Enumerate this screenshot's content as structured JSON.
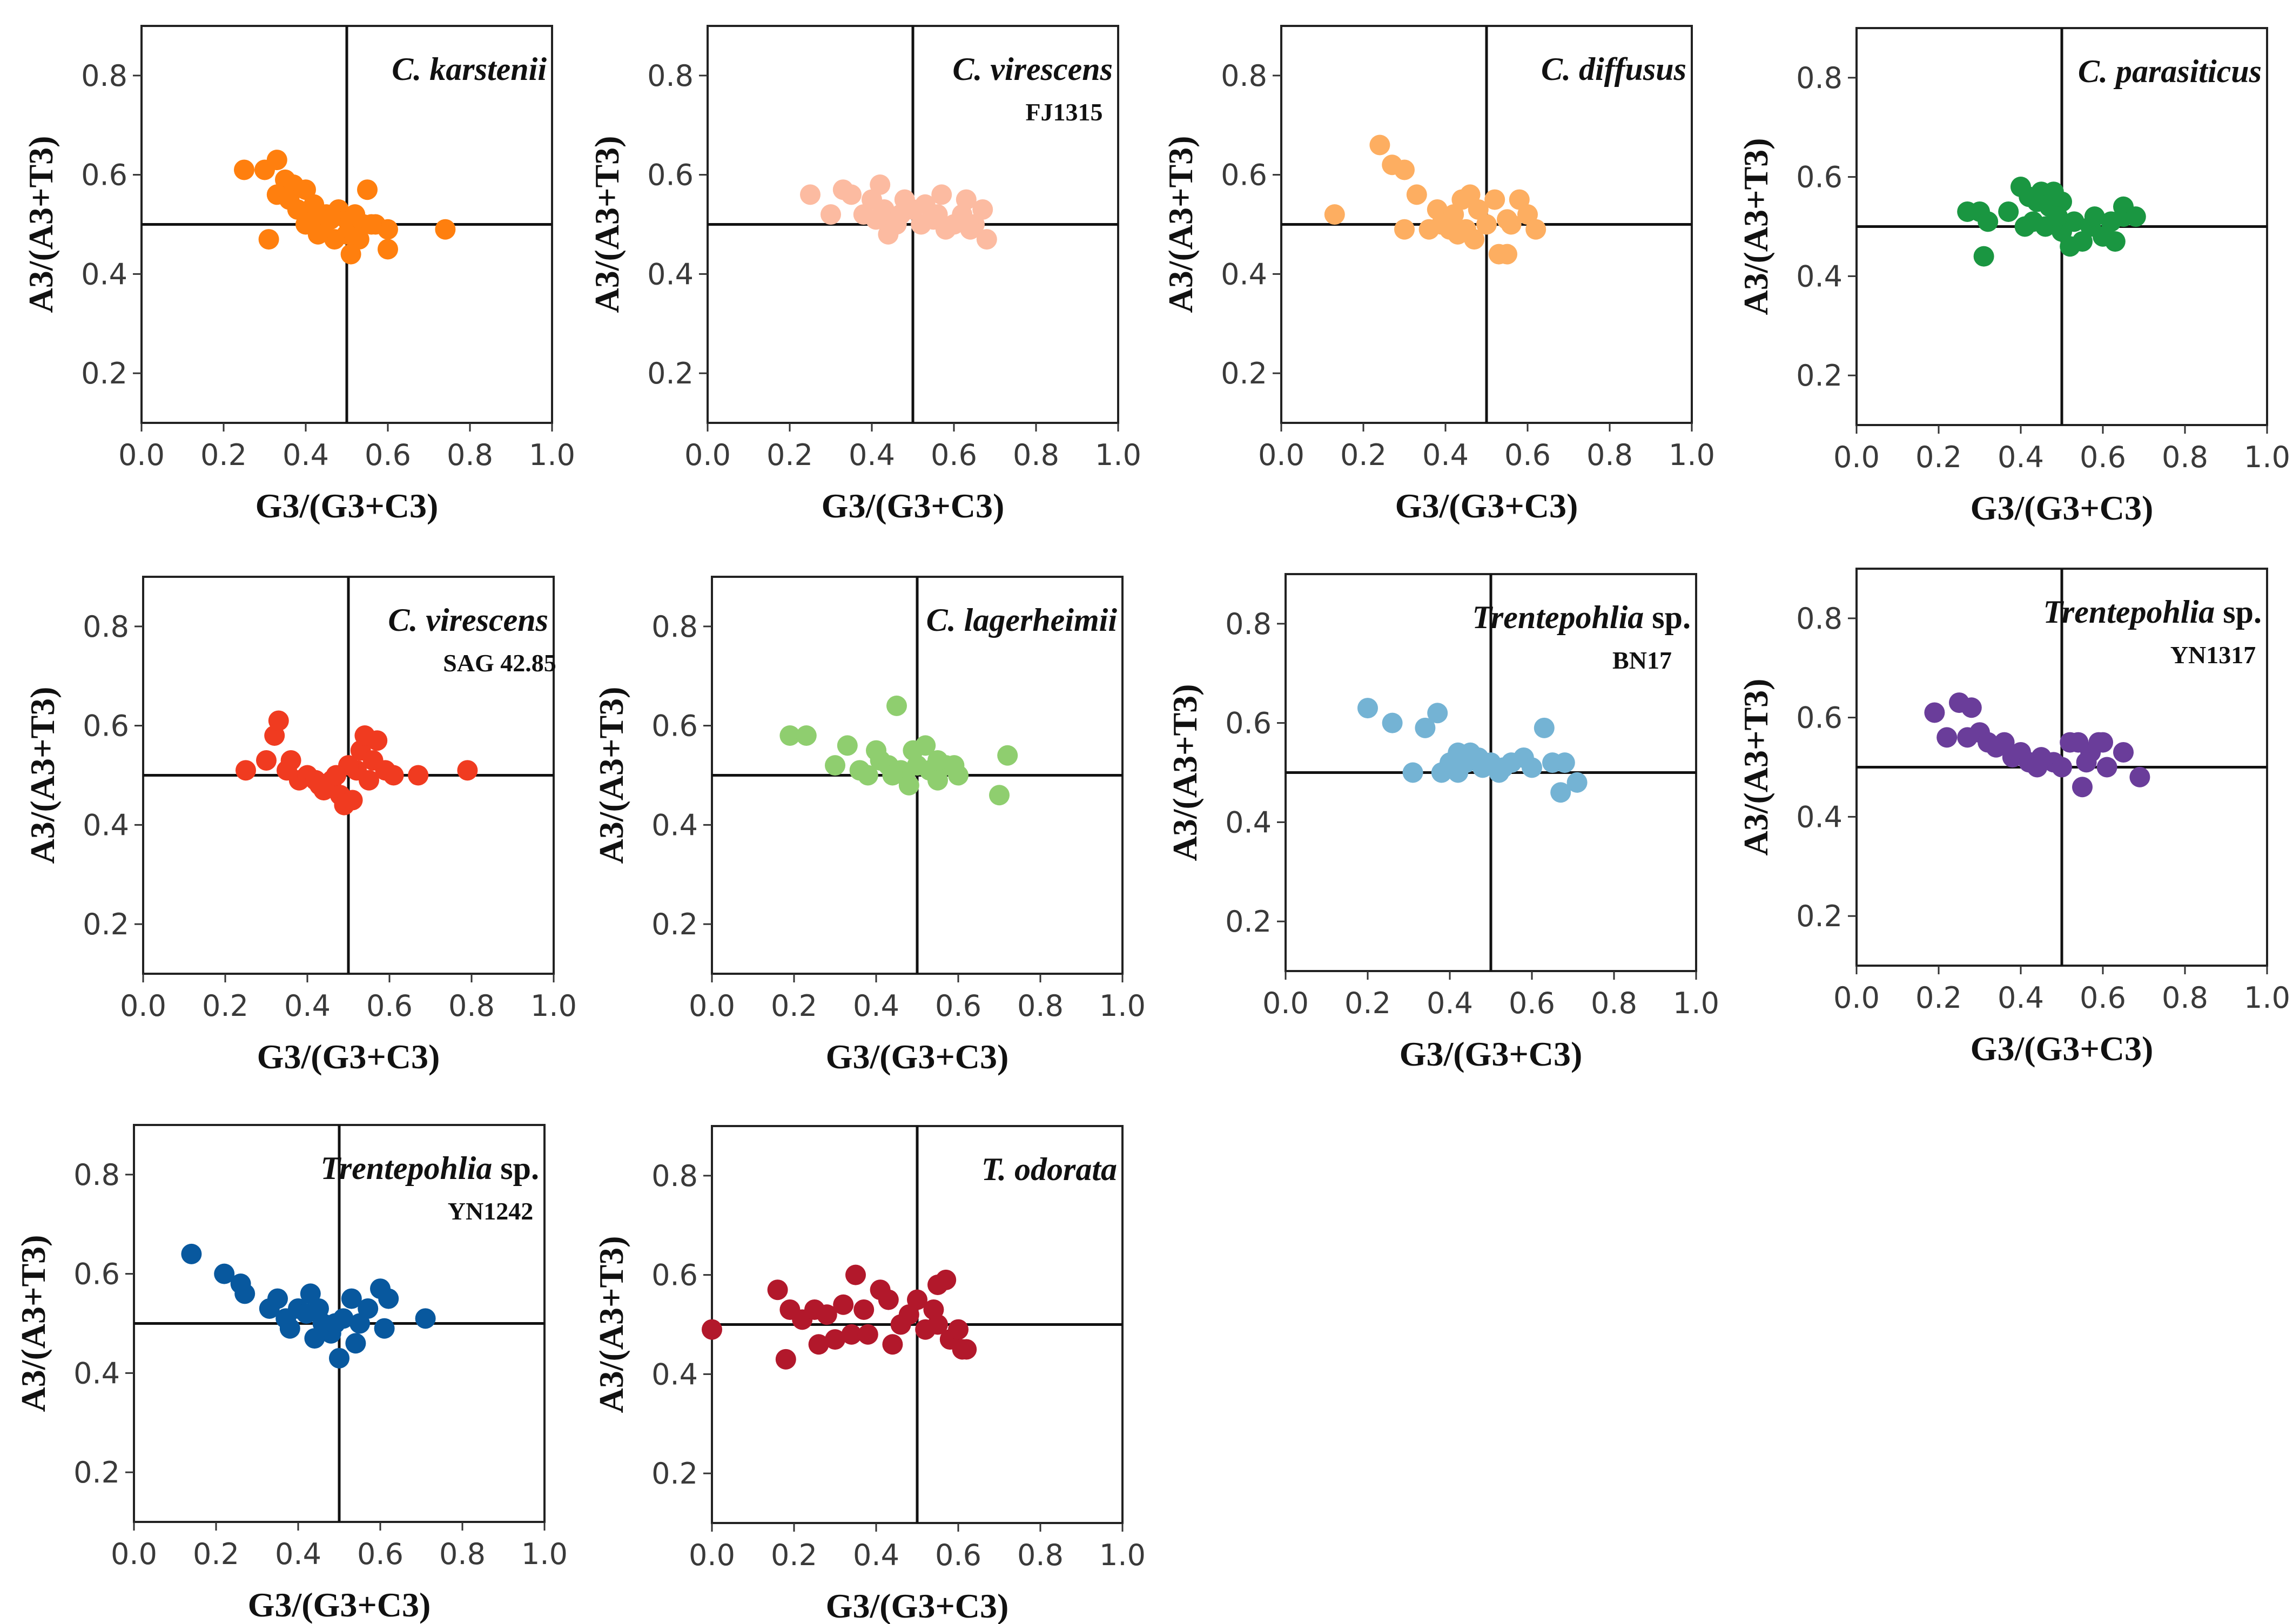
{
  "chart_data": [
    {
      "type": "scatter",
      "title_italic": "C. karstenii",
      "title_rest": "",
      "subtitle": "",
      "color": "#ff7f0e",
      "xlabel": "G3/(G3+C3)",
      "ylabel": "A3/(A3+T3)",
      "xlim": [
        0,
        1
      ],
      "ylim": [
        0.1,
        0.9
      ],
      "xticks": [
        "0.0",
        "0.2",
        "0.4",
        "0.6",
        "0.8",
        "1.0"
      ],
      "yticks": [
        "0.2",
        "0.4",
        "0.6",
        "0.8"
      ],
      "ref_x": 0.5,
      "ref_y": 0.5,
      "points": [
        [
          0.25,
          0.61
        ],
        [
          0.3,
          0.61
        ],
        [
          0.33,
          0.63
        ],
        [
          0.35,
          0.59
        ],
        [
          0.37,
          0.58
        ],
        [
          0.33,
          0.56
        ],
        [
          0.36,
          0.55
        ],
        [
          0.4,
          0.57
        ],
        [
          0.38,
          0.53
        ],
        [
          0.41,
          0.52
        ],
        [
          0.42,
          0.54
        ],
        [
          0.45,
          0.52
        ],
        [
          0.48,
          0.53
        ],
        [
          0.5,
          0.51
        ],
        [
          0.52,
          0.52
        ],
        [
          0.54,
          0.5
        ],
        [
          0.55,
          0.57
        ],
        [
          0.57,
          0.5
        ],
        [
          0.6,
          0.49
        ],
        [
          0.44,
          0.49
        ],
        [
          0.46,
          0.51
        ],
        [
          0.5,
          0.48
        ],
        [
          0.53,
          0.47
        ],
        [
          0.47,
          0.47
        ],
        [
          0.43,
          0.48
        ],
        [
          0.31,
          0.47
        ],
        [
          0.51,
          0.44
        ],
        [
          0.6,
          0.45
        ],
        [
          0.74,
          0.49
        ],
        [
          0.56,
          0.5
        ],
        [
          0.4,
          0.5
        ]
      ]
    },
    {
      "type": "scatter",
      "title_italic": "C. virescens",
      "title_rest": "",
      "subtitle": "FJ1315",
      "color": "#fcbba1",
      "xlabel": "G3/(G3+C3)",
      "ylabel": "A3/(A3+T3)",
      "xlim": [
        0,
        1
      ],
      "ylim": [
        0.1,
        0.9
      ],
      "xticks": [
        "0.0",
        "0.2",
        "0.4",
        "0.6",
        "0.8",
        "1.0"
      ],
      "yticks": [
        "0.2",
        "0.4",
        "0.6",
        "0.8"
      ],
      "ref_x": 0.5,
      "ref_y": 0.5,
      "points": [
        [
          0.25,
          0.56
        ],
        [
          0.3,
          0.52
        ],
        [
          0.33,
          0.57
        ],
        [
          0.35,
          0.56
        ],
        [
          0.4,
          0.55
        ],
        [
          0.42,
          0.58
        ],
        [
          0.43,
          0.53
        ],
        [
          0.45,
          0.5
        ],
        [
          0.47,
          0.52
        ],
        [
          0.48,
          0.55
        ],
        [
          0.5,
          0.53
        ],
        [
          0.52,
          0.5
        ],
        [
          0.55,
          0.51
        ],
        [
          0.57,
          0.56
        ],
        [
          0.6,
          0.5
        ],
        [
          0.62,
          0.52
        ],
        [
          0.63,
          0.55
        ],
        [
          0.65,
          0.5
        ],
        [
          0.67,
          0.53
        ],
        [
          0.68,
          0.47
        ],
        [
          0.44,
          0.48
        ],
        [
          0.46,
          0.5
        ],
        [
          0.53,
          0.54
        ],
        [
          0.58,
          0.49
        ],
        [
          0.41,
          0.51
        ],
        [
          0.38,
          0.52
        ],
        [
          0.56,
          0.52
        ],
        [
          0.64,
          0.49
        ]
      ]
    },
    {
      "type": "scatter",
      "title_italic": "C. diffusus",
      "title_rest": "",
      "subtitle": "",
      "color": "#fdae61",
      "xlabel": "G3/(G3+C3)",
      "ylabel": "A3/(A3+T3)",
      "xlim": [
        0,
        1
      ],
      "ylim": [
        0.1,
        0.9
      ],
      "xticks": [
        "0.0",
        "0.2",
        "0.4",
        "0.6",
        "0.8",
        "1.0"
      ],
      "yticks": [
        "0.2",
        "0.4",
        "0.6",
        "0.8"
      ],
      "ref_x": 0.5,
      "ref_y": 0.5,
      "points": [
        [
          0.13,
          0.52
        ],
        [
          0.24,
          0.66
        ],
        [
          0.27,
          0.62
        ],
        [
          0.3,
          0.61
        ],
        [
          0.33,
          0.56
        ],
        [
          0.3,
          0.49
        ],
        [
          0.36,
          0.49
        ],
        [
          0.38,
          0.53
        ],
        [
          0.4,
          0.51
        ],
        [
          0.42,
          0.52
        ],
        [
          0.44,
          0.55
        ],
        [
          0.46,
          0.56
        ],
        [
          0.48,
          0.53
        ],
        [
          0.45,
          0.49
        ],
        [
          0.43,
          0.48
        ],
        [
          0.5,
          0.5
        ],
        [
          0.52,
          0.55
        ],
        [
          0.55,
          0.51
        ],
        [
          0.58,
          0.55
        ],
        [
          0.6,
          0.52
        ],
        [
          0.62,
          0.49
        ],
        [
          0.53,
          0.44
        ],
        [
          0.55,
          0.44
        ],
        [
          0.47,
          0.47
        ],
        [
          0.41,
          0.49
        ],
        [
          0.39,
          0.5
        ],
        [
          0.56,
          0.5
        ]
      ]
    },
    {
      "type": "scatter",
      "title_italic": "C. parasiticus",
      "title_rest": "",
      "subtitle": "",
      "color": "#1a9641",
      "xlabel": "G3/(G3+C3)",
      "ylabel": "A3/(A3+T3)",
      "xlim": [
        0,
        1
      ],
      "ylim": [
        0.1,
        0.9
      ],
      "xticks": [
        "0.0",
        "0.2",
        "0.4",
        "0.6",
        "0.8",
        "1.0"
      ],
      "yticks": [
        "0.2",
        "0.4",
        "0.6",
        "0.8"
      ],
      "ref_x": 0.5,
      "ref_y": 0.5,
      "points": [
        [
          0.27,
          0.53
        ],
        [
          0.3,
          0.53
        ],
        [
          0.32,
          0.51
        ],
        [
          0.31,
          0.44
        ],
        [
          0.37,
          0.53
        ],
        [
          0.4,
          0.58
        ],
        [
          0.42,
          0.56
        ],
        [
          0.44,
          0.55
        ],
        [
          0.45,
          0.57
        ],
        [
          0.47,
          0.54
        ],
        [
          0.48,
          0.57
        ],
        [
          0.5,
          0.55
        ],
        [
          0.41,
          0.5
        ],
        [
          0.46,
          0.5
        ],
        [
          0.5,
          0.49
        ],
        [
          0.53,
          0.51
        ],
        [
          0.55,
          0.47
        ],
        [
          0.57,
          0.5
        ],
        [
          0.6,
          0.48
        ],
        [
          0.62,
          0.51
        ],
        [
          0.65,
          0.52
        ],
        [
          0.65,
          0.54
        ],
        [
          0.63,
          0.47
        ],
        [
          0.68,
          0.52
        ],
        [
          0.52,
          0.46
        ],
        [
          0.58,
          0.52
        ],
        [
          0.43,
          0.51
        ],
        [
          0.49,
          0.52
        ]
      ]
    },
    {
      "type": "scatter",
      "title_italic": "C. virescens",
      "title_rest": "",
      "subtitle": "SAG 42.85",
      "color": "#f03b20",
      "xlabel": "G3/(G3+C3)",
      "ylabel": "A3/(A3+T3)",
      "xlim": [
        0,
        1
      ],
      "ylim": [
        0.1,
        0.9
      ],
      "xticks": [
        "0.0",
        "0.2",
        "0.4",
        "0.6",
        "0.8",
        "1.0"
      ],
      "yticks": [
        "0.2",
        "0.4",
        "0.6",
        "0.8"
      ],
      "ref_x": 0.5,
      "ref_y": 0.5,
      "points": [
        [
          0.25,
          0.51
        ],
        [
          0.3,
          0.53
        ],
        [
          0.32,
          0.58
        ],
        [
          0.33,
          0.61
        ],
        [
          0.36,
          0.53
        ],
        [
          0.38,
          0.49
        ],
        [
          0.4,
          0.5
        ],
        [
          0.42,
          0.49
        ],
        [
          0.44,
          0.47
        ],
        [
          0.46,
          0.49
        ],
        [
          0.48,
          0.46
        ],
        [
          0.49,
          0.44
        ],
        [
          0.51,
          0.45
        ],
        [
          0.52,
          0.51
        ],
        [
          0.53,
          0.55
        ],
        [
          0.54,
          0.58
        ],
        [
          0.57,
          0.57
        ],
        [
          0.59,
          0.51
        ],
        [
          0.61,
          0.5
        ],
        [
          0.67,
          0.5
        ],
        [
          0.79,
          0.51
        ],
        [
          0.55,
          0.49
        ],
        [
          0.5,
          0.52
        ],
        [
          0.47,
          0.5
        ],
        [
          0.43,
          0.48
        ],
        [
          0.35,
          0.51
        ],
        [
          0.56,
          0.53
        ]
      ]
    },
    {
      "type": "scatter",
      "title_italic": "C. lagerheimii",
      "title_rest": "",
      "subtitle": "",
      "color": "#8fce6f",
      "xlabel": "G3/(G3+C3)",
      "ylabel": "A3/(A3+T3)",
      "xlim": [
        0,
        1
      ],
      "ylim": [
        0.1,
        0.9
      ],
      "xticks": [
        "0.0",
        "0.2",
        "0.4",
        "0.6",
        "0.8",
        "1.0"
      ],
      "yticks": [
        "0.2",
        "0.4",
        "0.6",
        "0.8"
      ],
      "ref_x": 0.5,
      "ref_y": 0.5,
      "points": [
        [
          0.19,
          0.58
        ],
        [
          0.23,
          0.58
        ],
        [
          0.3,
          0.52
        ],
        [
          0.33,
          0.56
        ],
        [
          0.38,
          0.5
        ],
        [
          0.4,
          0.55
        ],
        [
          0.41,
          0.53
        ],
        [
          0.43,
          0.52
        ],
        [
          0.45,
          0.64
        ],
        [
          0.46,
          0.51
        ],
        [
          0.47,
          0.5
        ],
        [
          0.49,
          0.55
        ],
        [
          0.5,
          0.52
        ],
        [
          0.52,
          0.56
        ],
        [
          0.53,
          0.51
        ],
        [
          0.55,
          0.49
        ],
        [
          0.57,
          0.52
        ],
        [
          0.59,
          0.52
        ],
        [
          0.6,
          0.5
        ],
        [
          0.7,
          0.46
        ],
        [
          0.72,
          0.54
        ],
        [
          0.44,
          0.5
        ],
        [
          0.48,
          0.48
        ],
        [
          0.55,
          0.53
        ],
        [
          0.36,
          0.51
        ]
      ]
    },
    {
      "type": "scatter",
      "title_italic": "Trentepohlia",
      "title_rest": " sp.",
      "subtitle": "BN17",
      "color": "#74b3d4",
      "xlabel": "G3/(G3+C3)",
      "ylabel": "A3/(A3+T3)",
      "xlim": [
        0,
        1
      ],
      "ylim": [
        0.1,
        0.9
      ],
      "xticks": [
        "0.0",
        "0.2",
        "0.4",
        "0.6",
        "0.8",
        "1.0"
      ],
      "yticks": [
        "0.2",
        "0.4",
        "0.6",
        "0.8"
      ],
      "ref_x": 0.5,
      "ref_y": 0.5,
      "points": [
        [
          0.2,
          0.63
        ],
        [
          0.26,
          0.6
        ],
        [
          0.31,
          0.5
        ],
        [
          0.34,
          0.59
        ],
        [
          0.37,
          0.62
        ],
        [
          0.38,
          0.5
        ],
        [
          0.4,
          0.52
        ],
        [
          0.42,
          0.54
        ],
        [
          0.44,
          0.52
        ],
        [
          0.45,
          0.54
        ],
        [
          0.47,
          0.53
        ],
        [
          0.5,
          0.52
        ],
        [
          0.52,
          0.5
        ],
        [
          0.55,
          0.52
        ],
        [
          0.58,
          0.53
        ],
        [
          0.63,
          0.59
        ],
        [
          0.65,
          0.52
        ],
        [
          0.67,
          0.46
        ],
        [
          0.68,
          0.52
        ],
        [
          0.71,
          0.48
        ],
        [
          0.48,
          0.51
        ],
        [
          0.42,
          0.5
        ],
        [
          0.53,
          0.51
        ],
        [
          0.6,
          0.51
        ]
      ]
    },
    {
      "type": "scatter",
      "title_italic": "Trentepohlia",
      "title_rest": " sp.",
      "subtitle": "YN1317",
      "color": "#6a3d9a",
      "xlabel": "G3/(G3+C3)",
      "ylabel": "A3/(A3+T3)",
      "xlim": [
        0,
        1
      ],
      "ylim": [
        0.1,
        0.9
      ],
      "xticks": [
        "0.0",
        "0.2",
        "0.4",
        "0.6",
        "0.8",
        "1.0"
      ],
      "yticks": [
        "0.2",
        "0.4",
        "0.6",
        "0.8"
      ],
      "ref_x": 0.5,
      "ref_y": 0.5,
      "points": [
        [
          0.19,
          0.61
        ],
        [
          0.22,
          0.56
        ],
        [
          0.25,
          0.63
        ],
        [
          0.27,
          0.56
        ],
        [
          0.28,
          0.62
        ],
        [
          0.3,
          0.57
        ],
        [
          0.32,
          0.55
        ],
        [
          0.34,
          0.54
        ],
        [
          0.36,
          0.55
        ],
        [
          0.38,
          0.52
        ],
        [
          0.4,
          0.53
        ],
        [
          0.42,
          0.51
        ],
        [
          0.45,
          0.52
        ],
        [
          0.48,
          0.51
        ],
        [
          0.5,
          0.5
        ],
        [
          0.52,
          0.55
        ],
        [
          0.54,
          0.55
        ],
        [
          0.55,
          0.46
        ],
        [
          0.57,
          0.53
        ],
        [
          0.59,
          0.55
        ],
        [
          0.61,
          0.5
        ],
        [
          0.65,
          0.53
        ],
        [
          0.69,
          0.48
        ],
        [
          0.6,
          0.55
        ],
        [
          0.56,
          0.51
        ],
        [
          0.44,
          0.5
        ]
      ]
    },
    {
      "type": "scatter",
      "title_italic": "Trentepohlia",
      "title_rest": " sp.",
      "subtitle": "YN1242",
      "color": "#08589e",
      "xlabel": "G3/(G3+C3)",
      "ylabel": "A3/(A3+T3)",
      "xlim": [
        0,
        1
      ],
      "ylim": [
        0.1,
        0.9
      ],
      "xticks": [
        "0.0",
        "0.2",
        "0.4",
        "0.6",
        "0.8",
        "1.0"
      ],
      "yticks": [
        "0.2",
        "0.4",
        "0.6",
        "0.8"
      ],
      "ref_x": 0.5,
      "ref_y": 0.5,
      "points": [
        [
          0.14,
          0.64
        ],
        [
          0.22,
          0.6
        ],
        [
          0.26,
          0.58
        ],
        [
          0.27,
          0.56
        ],
        [
          0.33,
          0.53
        ],
        [
          0.35,
          0.55
        ],
        [
          0.37,
          0.51
        ],
        [
          0.38,
          0.49
        ],
        [
          0.4,
          0.53
        ],
        [
          0.42,
          0.52
        ],
        [
          0.43,
          0.56
        ],
        [
          0.44,
          0.47
        ],
        [
          0.46,
          0.5
        ],
        [
          0.48,
          0.48
        ],
        [
          0.5,
          0.43
        ],
        [
          0.51,
          0.51
        ],
        [
          0.53,
          0.55
        ],
        [
          0.55,
          0.5
        ],
        [
          0.57,
          0.53
        ],
        [
          0.6,
          0.57
        ],
        [
          0.61,
          0.49
        ],
        [
          0.62,
          0.55
        ],
        [
          0.71,
          0.51
        ],
        [
          0.45,
          0.53
        ],
        [
          0.49,
          0.5
        ],
        [
          0.54,
          0.46
        ]
      ]
    },
    {
      "type": "scatter",
      "title_italic": "T. odorata",
      "title_rest": "",
      "subtitle": "",
      "color": "#b2182b",
      "xlabel": "G3/(G3+C3)",
      "ylabel": "A3/(A3+T3)",
      "xlim": [
        0,
        1
      ],
      "ylim": [
        0.1,
        0.9
      ],
      "xticks": [
        "0.0",
        "0.2",
        "0.4",
        "0.6",
        "0.8",
        "1.0"
      ],
      "yticks": [
        "0.2",
        "0.4",
        "0.6",
        "0.8"
      ],
      "ref_x": 0.5,
      "ref_y": 0.5,
      "points": [
        [
          0.0,
          0.49
        ],
        [
          0.16,
          0.57
        ],
        [
          0.18,
          0.43
        ],
        [
          0.19,
          0.53
        ],
        [
          0.22,
          0.51
        ],
        [
          0.25,
          0.53
        ],
        [
          0.26,
          0.46
        ],
        [
          0.28,
          0.52
        ],
        [
          0.3,
          0.47
        ],
        [
          0.32,
          0.54
        ],
        [
          0.34,
          0.48
        ],
        [
          0.35,
          0.6
        ],
        [
          0.37,
          0.53
        ],
        [
          0.38,
          0.48
        ],
        [
          0.41,
          0.57
        ],
        [
          0.43,
          0.55
        ],
        [
          0.44,
          0.46
        ],
        [
          0.46,
          0.5
        ],
        [
          0.48,
          0.52
        ],
        [
          0.5,
          0.55
        ],
        [
          0.52,
          0.49
        ],
        [
          0.54,
          0.53
        ],
        [
          0.55,
          0.58
        ],
        [
          0.57,
          0.59
        ],
        [
          0.58,
          0.47
        ],
        [
          0.6,
          0.49
        ],
        [
          0.61,
          0.45
        ],
        [
          0.62,
          0.45
        ],
        [
          0.55,
          0.5
        ]
      ]
    }
  ]
}
